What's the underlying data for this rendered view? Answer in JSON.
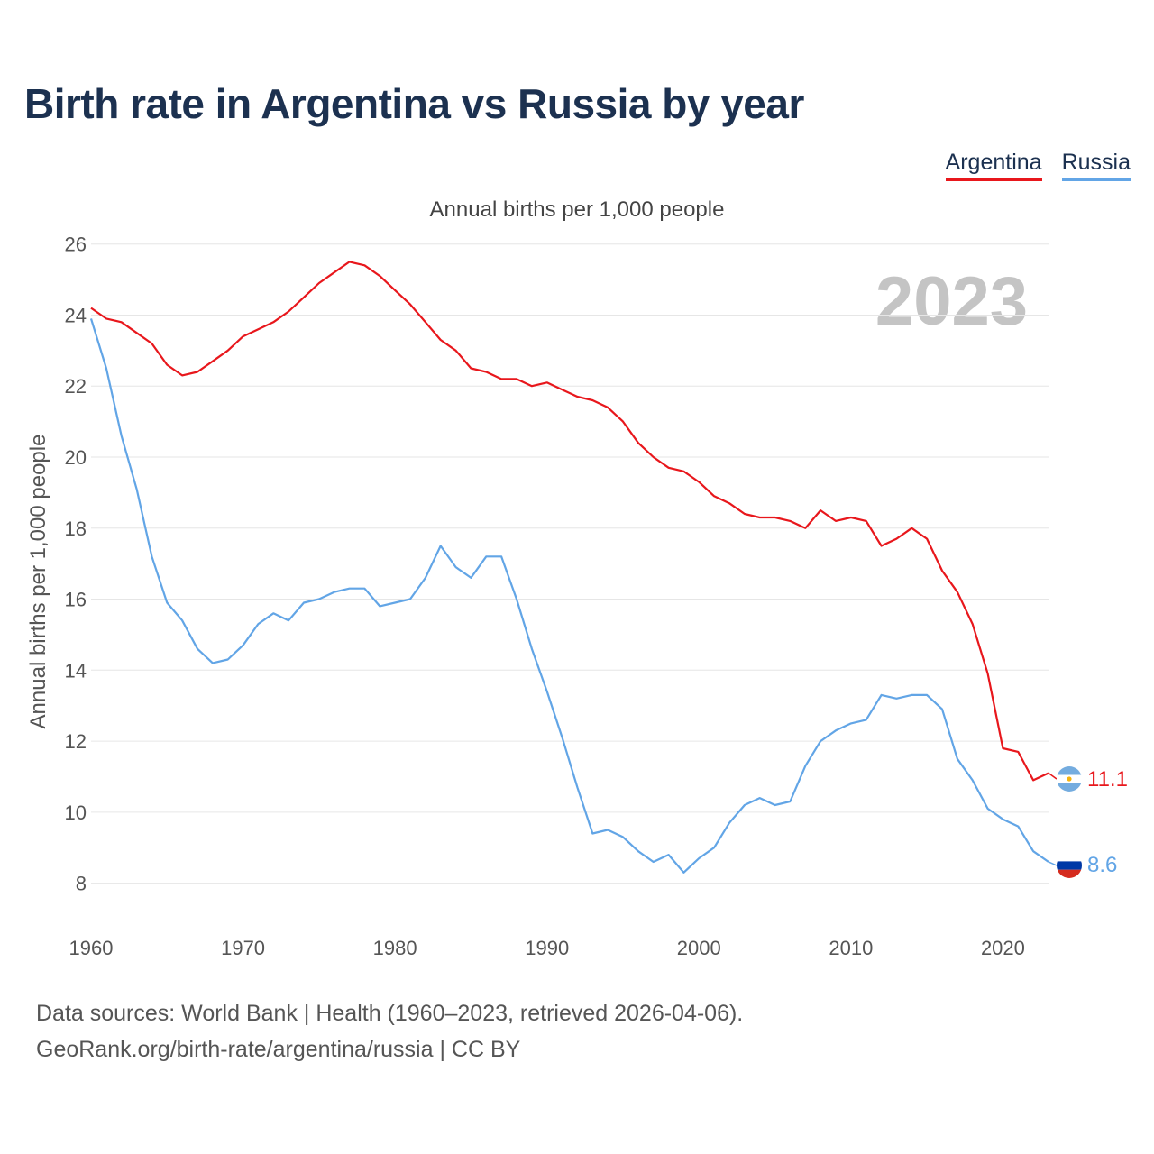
{
  "page": {
    "title": "Birth rate in Argentina vs Russia by year",
    "footer_line1": "Data sources: World Bank | Health (1960–2023, retrieved 2026-04-06).",
    "footer_line2": "GeoRank.org/birth-rate/argentina/russia | CC BY"
  },
  "legend": {
    "argentina_label": "Argentina",
    "russia_label": "Russia"
  },
  "chart_data": {
    "type": "line",
    "title": "Birth rate in Argentina vs Russia by year",
    "subtitle": "Annual births per 1,000 people",
    "ylabel": "Annual births per 1,000 people",
    "xlabel": "",
    "year_label": "2023",
    "xlim": [
      1960,
      2023
    ],
    "ylim": [
      7,
      26.5
    ],
    "x_ticks": [
      1960,
      1970,
      1980,
      1990,
      2000,
      2010,
      2020
    ],
    "y_ticks": [
      8,
      10,
      12,
      14,
      16,
      18,
      20,
      22,
      24,
      26
    ],
    "x": [
      1960,
      1961,
      1962,
      1963,
      1964,
      1965,
      1966,
      1967,
      1968,
      1969,
      1970,
      1971,
      1972,
      1973,
      1974,
      1975,
      1976,
      1977,
      1978,
      1979,
      1980,
      1981,
      1982,
      1983,
      1984,
      1985,
      1986,
      1987,
      1988,
      1989,
      1990,
      1991,
      1992,
      1993,
      1994,
      1995,
      1996,
      1997,
      1998,
      1999,
      2000,
      2001,
      2002,
      2003,
      2004,
      2005,
      2006,
      2007,
      2008,
      2009,
      2010,
      2011,
      2012,
      2013,
      2014,
      2015,
      2016,
      2017,
      2018,
      2019,
      2020,
      2021,
      2022,
      2023
    ],
    "series": [
      {
        "name": "Argentina",
        "color": "#e8171c",
        "end_label": "11.1",
        "values": [
          24.2,
          23.9,
          23.8,
          23.5,
          23.2,
          22.6,
          22.3,
          22.4,
          22.7,
          23.0,
          23.4,
          23.6,
          23.8,
          24.1,
          24.5,
          24.9,
          25.2,
          25.5,
          25.4,
          25.1,
          24.7,
          24.3,
          23.8,
          23.3,
          23.0,
          22.5,
          22.4,
          22.2,
          22.2,
          22.0,
          22.1,
          21.9,
          21.7,
          21.6,
          21.4,
          21.0,
          20.4,
          20.0,
          19.7,
          19.6,
          19.3,
          18.9,
          18.7,
          18.4,
          18.3,
          18.3,
          18.2,
          18.0,
          18.5,
          18.2,
          18.3,
          18.2,
          17.5,
          17.7,
          18.0,
          17.7,
          16.8,
          16.2,
          15.3,
          13.9,
          11.8,
          11.7,
          10.9,
          11.1
        ]
      },
      {
        "name": "Russia",
        "color": "#62a5e6",
        "end_label": "8.6",
        "values": [
          23.9,
          22.5,
          20.6,
          19.1,
          17.2,
          15.9,
          15.4,
          14.6,
          14.2,
          14.3,
          14.7,
          15.3,
          15.6,
          15.4,
          15.9,
          16.0,
          16.2,
          16.3,
          16.3,
          15.8,
          15.9,
          16.0,
          16.6,
          17.5,
          16.9,
          16.6,
          17.2,
          17.2,
          16.0,
          14.6,
          13.4,
          12.1,
          10.7,
          9.4,
          9.5,
          9.3,
          8.9,
          8.6,
          8.8,
          8.3,
          8.7,
          9.0,
          9.7,
          10.2,
          10.4,
          10.2,
          10.3,
          11.3,
          12.0,
          12.3,
          12.5,
          12.6,
          13.3,
          13.2,
          13.3,
          13.3,
          12.9,
          11.5,
          10.9,
          10.1,
          9.8,
          9.6,
          8.9,
          8.6
        ]
      }
    ]
  }
}
